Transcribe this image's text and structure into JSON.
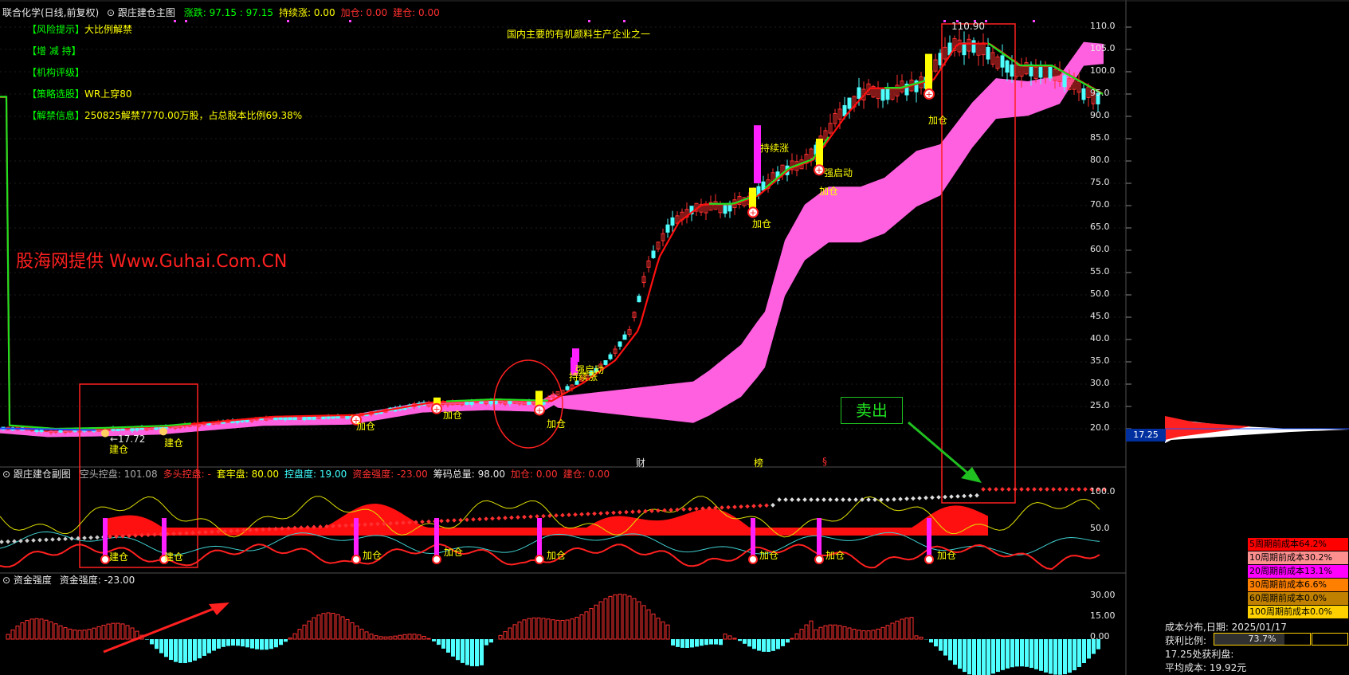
{
  "header": {
    "stock_title": "联合化学(日线,前复权)",
    "indicator_name": "跟庄建仓主图",
    "items": [
      {
        "label": "涨跌: 97.15 : 97.15",
        "color": "#00ff00"
      },
      {
        "label": "持续涨: 0.00",
        "color": "#ffff00"
      },
      {
        "label": "加仓: 0.00",
        "color": "#ff3030"
      },
      {
        "label": "建仓: 0.00",
        "color": "#ff3030"
      }
    ]
  },
  "info_lines": [
    {
      "tag": "【风险提示】",
      "text": "大比例解禁"
    },
    {
      "tag": "【增 减 持】",
      "text": ""
    },
    {
      "tag": "【机构评级】",
      "text": ""
    },
    {
      "tag": "【策略选股】",
      "text": "WR上穿80"
    },
    {
      "tag": "【解禁信息】",
      "text": "250825解禁7770.00万股，占总股本比例69.38%"
    }
  ],
  "company_note": "国内主要的有机颜料生产企业之一",
  "watermark": "股海网提供 Www.Guhai.Com.CN",
  "sell_label": "卖出",
  "markers": {
    "low_label": "←17.72",
    "high_label": "11​0.90",
    "event_cai": "财",
    "event_bang": "榜",
    "event_s": "§"
  },
  "signal_labels": {
    "jiancang": "建仓",
    "jiacang": "加仓",
    "chixuzhang": "持续涨",
    "qiangqidong": "强启动"
  },
  "main_axis": {
    "ticks": [
      "110.0",
      "105.0",
      "100.0",
      "95.0",
      "90.0",
      "85.0",
      "80.0",
      "75.0",
      "70.0",
      "65.0",
      "60.0",
      "55.0",
      "50.0",
      "45.0",
      "40.0",
      "35.0",
      "30.0",
      "25.0",
      "20.0"
    ],
    "current_price": "17.25"
  },
  "sub1": {
    "title": "跟庄建仓副图",
    "items": [
      {
        "label": "空头控盘: 101.08",
        "color": "#aaaaaa"
      },
      {
        "label": "多头控盘: -",
        "color": "#ff3030"
      },
      {
        "label": "套牢盘: 80.00",
        "color": "#ffff00"
      },
      {
        "label": "控盘度: 19.00",
        "color": "#40ffff"
      },
      {
        "label": "资金强度: -23.00",
        "color": "#ff3030"
      },
      {
        "label": "筹码总量: 98.00",
        "color": "#e8e8e8"
      },
      {
        "label": "加仓: 0.00",
        "color": "#ff3030"
      },
      {
        "label": "建仓: 0.00",
        "color": "#ff3030"
      }
    ],
    "ticks": [
      "100.0",
      "50.0"
    ]
  },
  "sub2": {
    "title": "资金强度",
    "value_label": "资金强度: -23.00",
    "ticks": [
      "30.00",
      "15.00",
      "0.00"
    ]
  },
  "cost_panel": {
    "rows": [
      {
        "label": "5周期前成本64.2%",
        "bg": "#ff0000",
        "fg": "#000"
      },
      {
        "label": "10周期前成本30.2%",
        "bg": "#ff9090",
        "fg": "#000"
      },
      {
        "label": "20周期前成本13.1%",
        "bg": "#ff00ff",
        "fg": "#000"
      },
      {
        "label": "30周期前成本6.6%",
        "bg": "#ff8000",
        "fg": "#000"
      },
      {
        "label": "60周期前成本0.0%",
        "bg": "#c08000",
        "fg": "#000"
      },
      {
        "label": "100周期前成本0.0%",
        "bg": "#ffd000",
        "fg": "#000"
      }
    ],
    "dist_date": "成本分布,日期:  2025/01/17",
    "profit_label": "获利比例:",
    "profit_value": "73.7%",
    "profit_fraction": 0.737,
    "price_profit": "17.25处获利盘:",
    "avg_cost": "平均成本:  19.92元"
  }
}
